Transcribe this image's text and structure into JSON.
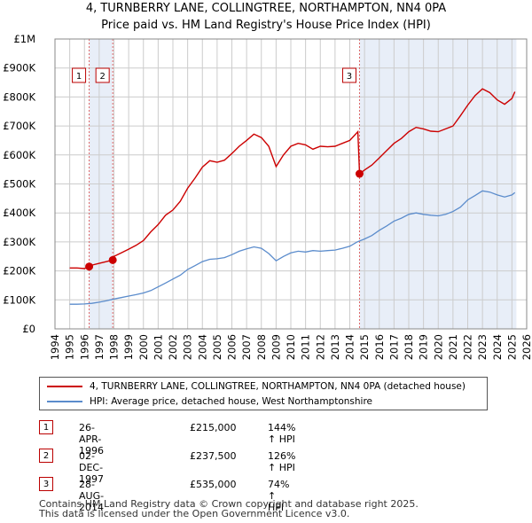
{
  "title_line1": "4, TURNBERRY LANE, COLLINGTREE, NORTHAMPTON, NN4 0PA",
  "title_line2": "Price paid vs. HM Land Registry's House Price Index (HPI)",
  "legend": {
    "property": "4, TURNBERRY LANE, COLLINGTREE, NORTHAMPTON, NN4 0PA (detached house)",
    "hpi": "HPI: Average price, detached house, West Northamptonshire"
  },
  "transactions": [
    {
      "num": "1",
      "date": "26-APR-1996",
      "price": "£215,000",
      "hpi": "144% ↑ HPI"
    },
    {
      "num": "2",
      "date": "02-DEC-1997",
      "price": "£237,500",
      "hpi": "126% ↑ HPI"
    },
    {
      "num": "3",
      "date": "28-AUG-2014",
      "price": "£535,000",
      "hpi": "74% ↑ HPI"
    }
  ],
  "footer": {
    "line1": "Contains HM Land Registry data © Crown copyright and database right 2025.",
    "line2": "This data is licensed under the Open Government Licence v3.0."
  },
  "colors": {
    "property": "#cc0000",
    "hpi": "#5b8ccc",
    "grid": "#cccccc",
    "shade": "#e8eef8",
    "marker_line": "#dd6666"
  },
  "chart_data": {
    "type": "line",
    "xlim": [
      1994,
      2026
    ],
    "ylim": [
      0,
      1000000
    ],
    "x_ticks": [
      1994,
      1995,
      1996,
      1997,
      1998,
      1999,
      2000,
      2001,
      2002,
      2003,
      2004,
      2005,
      2006,
      2007,
      2008,
      2009,
      2010,
      2011,
      2012,
      2013,
      2014,
      2015,
      2016,
      2017,
      2018,
      2019,
      2020,
      2021,
      2022,
      2023,
      2024,
      2025,
      2026
    ],
    "y_ticks": [
      {
        "value": 0,
        "label": "£0"
      },
      {
        "value": 100000,
        "label": "£100K"
      },
      {
        "value": 200000,
        "label": "£200K"
      },
      {
        "value": 300000,
        "label": "£300K"
      },
      {
        "value": 400000,
        "label": "£400K"
      },
      {
        "value": 500000,
        "label": "£500K"
      },
      {
        "value": 600000,
        "label": "£600K"
      },
      {
        "value": 700000,
        "label": "£700K"
      },
      {
        "value": 800000,
        "label": "£800K"
      },
      {
        "value": 900000,
        "label": "£900K"
      },
      {
        "value": 1000000,
        "label": "£1M"
      }
    ],
    "sales": [
      {
        "label": "1",
        "x": 1996.32,
        "y": 215000
      },
      {
        "label": "2",
        "x": 1997.92,
        "y": 237500
      },
      {
        "label": "3",
        "x": 2014.66,
        "y": 535000
      }
    ],
    "shaded_ranges": [
      [
        1996.32,
        1997.92
      ],
      [
        2014.66,
        2025.3
      ]
    ],
    "series": [
      {
        "name": "HPI: Average price, detached house, West Northamptonshire",
        "x": [
          1995,
          1995.5,
          1996,
          1996.5,
          1997,
          1997.5,
          1998,
          1998.5,
          1999,
          1999.5,
          2000,
          2000.5,
          2001,
          2001.5,
          2002,
          2002.5,
          2003,
          2003.5,
          2004,
          2004.5,
          2005,
          2005.5,
          2006,
          2006.5,
          2007,
          2007.5,
          2008,
          2008.5,
          2009,
          2009.5,
          2010,
          2010.5,
          2011,
          2011.5,
          2012,
          2012.5,
          2013,
          2013.5,
          2014,
          2014.5,
          2015,
          2015.5,
          2016,
          2016.5,
          2017,
          2017.5,
          2018,
          2018.5,
          2019,
          2019.5,
          2020,
          2020.5,
          2021,
          2021.5,
          2022,
          2022.5,
          2023,
          2023.5,
          2024,
          2024.5,
          2025,
          2025.2
        ],
        "values": [
          85000,
          85000,
          86000,
          88000,
          92000,
          97000,
          103000,
          108000,
          113000,
          118000,
          124000,
          132000,
          145000,
          158000,
          172000,
          185000,
          205000,
          218000,
          232000,
          240000,
          242000,
          246000,
          256000,
          268000,
          276000,
          283000,
          278000,
          260000,
          235000,
          250000,
          262000,
          268000,
          265000,
          270000,
          268000,
          270000,
          272000,
          278000,
          285000,
          300000,
          310000,
          322000,
          340000,
          355000,
          372000,
          382000,
          395000,
          400000,
          395000,
          392000,
          390000,
          395000,
          405000,
          420000,
          445000,
          460000,
          476000,
          472000,
          462000,
          455000,
          462000,
          470000
        ]
      },
      {
        "name": "4, TURNBERRY LANE, COLLINGTREE, NORTHAMPTON, NN4 0PA (detached house)",
        "segments": [
          {
            "x": [
              1995,
              1995.5,
              1996,
              1996.32
            ],
            "values": [
              210000,
              210000,
              208000,
              215000
            ]
          },
          {
            "x": [
              1996.32,
              1996.5,
              1997,
              1997.5,
              1997.92
            ],
            "values": [
              215000,
              220000,
              226000,
              232000,
              237500
            ]
          },
          {
            "x": [
              1997.92,
              1998,
              1998.5,
              1999,
              1999.5,
              2000,
              2000.5,
              2001,
              2001.5,
              2002,
              2002.5,
              2003,
              2003.5,
              2004,
              2004.5,
              2005,
              2005.5,
              2006,
              2006.5,
              2007,
              2007.5,
              2008,
              2008.5,
              2009,
              2009.5,
              2010,
              2010.5,
              2011,
              2011.5,
              2012,
              2012.5,
              2013,
              2013.5,
              2014,
              2014.55,
              2014.66
            ],
            "values": [
              237500,
              250000,
              262000,
              275000,
              288000,
              305000,
              335000,
              360000,
              392000,
              410000,
              440000,
              485000,
              520000,
              558000,
              580000,
              575000,
              582000,
              605000,
              630000,
              650000,
              672000,
              660000,
              630000,
              560000,
              600000,
              630000,
              640000,
              635000,
              620000,
              630000,
              628000,
              630000,
              640000,
              650000,
              680000,
              535000
            ]
          },
          {
            "x": [
              2014.66,
              2015,
              2015.5,
              2016,
              2016.5,
              2017,
              2017.5,
              2018,
              2018.5,
              2019,
              2019.5,
              2020,
              2020.5,
              2021,
              2021.5,
              2022,
              2022.5,
              2023,
              2023.5,
              2024,
              2024.5,
              2025,
              2025.2
            ],
            "values": [
              535000,
              548000,
              565000,
              590000,
              615000,
              640000,
              657000,
              680000,
              695000,
              690000,
              682000,
              680000,
              690000,
              700000,
              735000,
              772000,
              805000,
              828000,
              815000,
              790000,
              775000,
              795000,
              818000
            ]
          }
        ]
      }
    ]
  }
}
